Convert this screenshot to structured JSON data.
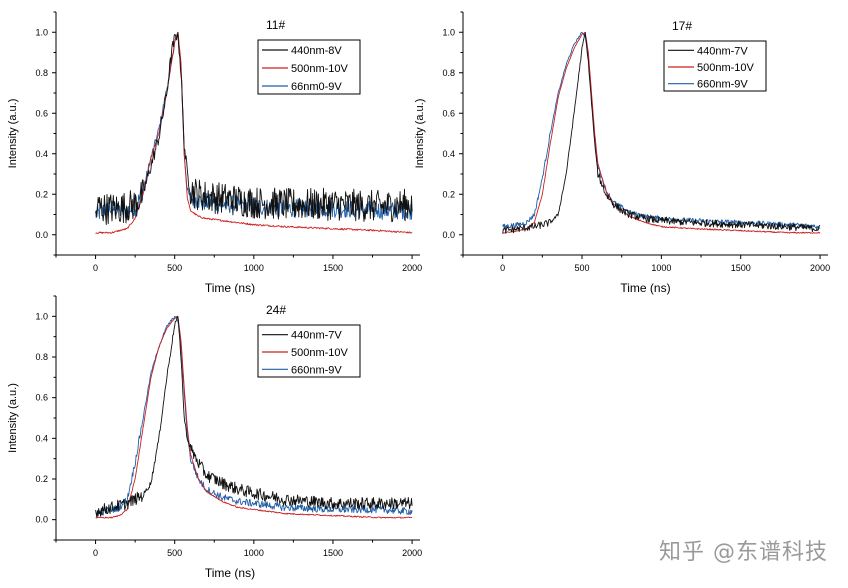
{
  "chart_data": [
    {
      "type": "line",
      "title": "11#",
      "xlabel": "Time (ns)",
      "ylabel": "Intensity (a.u.)",
      "xlim": [
        -250,
        2050
      ],
      "ylim": [
        -0.1,
        1.1
      ],
      "xticks": [
        0,
        500,
        1000,
        1500,
        2000
      ],
      "yticks": [
        0.0,
        0.2,
        0.4,
        0.6,
        0.8,
        1.0
      ],
      "legend_position": "top-right",
      "series": [
        {
          "name": "440nm-8V",
          "color": "#111111",
          "noise": 0.08,
          "x": [
            0,
            20,
            50,
            100,
            150,
            200,
            250,
            300,
            350,
            400,
            450,
            480,
            500,
            520,
            540,
            560,
            580,
            600,
            650,
            700,
            800,
            900,
            1000,
            1200,
            1500,
            1800,
            2000
          ],
          "y": [
            0.1,
            0.14,
            0.13,
            0.13,
            0.13,
            0.14,
            0.15,
            0.2,
            0.34,
            0.48,
            0.7,
            0.9,
            0.97,
            1.0,
            0.8,
            0.45,
            0.3,
            0.22,
            0.2,
            0.19,
            0.18,
            0.17,
            0.16,
            0.15,
            0.15,
            0.14,
            0.15
          ]
        },
        {
          "name": "500nm-10V",
          "color": "#cc2020",
          "noise": 0.004,
          "x": [
            0,
            50,
            100,
            150,
            200,
            250,
            300,
            350,
            400,
            450,
            500,
            520,
            540,
            560,
            580,
            600,
            650,
            700,
            800,
            900,
            1000,
            1200,
            1500,
            1800,
            2000
          ],
          "y": [
            0.01,
            0.01,
            0.01,
            0.02,
            0.03,
            0.08,
            0.2,
            0.38,
            0.5,
            0.7,
            0.95,
            1.0,
            0.85,
            0.4,
            0.18,
            0.12,
            0.09,
            0.08,
            0.07,
            0.06,
            0.05,
            0.04,
            0.03,
            0.02,
            0.01
          ]
        },
        {
          "name": "66nm0-9V",
          "color": "#1f5fa8",
          "noise": 0.045,
          "x": [
            0,
            50,
            100,
            150,
            200,
            250,
            300,
            350,
            400,
            450,
            500,
            520,
            540,
            560,
            580,
            600,
            650,
            700,
            800,
            900,
            1000,
            1200,
            1500,
            1800,
            2000
          ],
          "y": [
            0.1,
            0.12,
            0.13,
            0.12,
            0.12,
            0.13,
            0.22,
            0.38,
            0.52,
            0.72,
            0.95,
            1.0,
            0.82,
            0.4,
            0.22,
            0.18,
            0.17,
            0.16,
            0.15,
            0.15,
            0.14,
            0.13,
            0.13,
            0.12,
            0.12
          ]
        }
      ]
    },
    {
      "type": "line",
      "title": "17#",
      "xlabel": "Time (ns)",
      "ylabel": "Intensity (a.u.)",
      "xlim": [
        -250,
        2050
      ],
      "ylim": [
        -0.1,
        1.1
      ],
      "xticks": [
        0,
        500,
        1000,
        1500,
        2000
      ],
      "yticks": [
        0.0,
        0.2,
        0.4,
        0.6,
        0.8,
        1.0
      ],
      "legend_position": "top-right",
      "series": [
        {
          "name": "440nm-7V",
          "color": "#111111",
          "noise": 0.018,
          "x": [
            0,
            100,
            200,
            250,
            300,
            350,
            400,
            450,
            500,
            520,
            540,
            560,
            580,
            600,
            650,
            700,
            750,
            800,
            900,
            1000,
            1200,
            1500,
            1800,
            2000
          ],
          "y": [
            0.02,
            0.03,
            0.04,
            0.05,
            0.06,
            0.1,
            0.3,
            0.6,
            0.92,
            1.0,
            0.85,
            0.65,
            0.45,
            0.3,
            0.2,
            0.15,
            0.12,
            0.1,
            0.08,
            0.07,
            0.06,
            0.05,
            0.04,
            0.03
          ]
        },
        {
          "name": "500nm-10V",
          "color": "#cc2020",
          "noise": 0.003,
          "x": [
            0,
            100,
            150,
            200,
            250,
            300,
            350,
            400,
            450,
            500,
            520,
            540,
            560,
            580,
            600,
            650,
            700,
            800,
            900,
            1000,
            1200,
            1500,
            1800,
            2000
          ],
          "y": [
            0.01,
            0.02,
            0.03,
            0.06,
            0.2,
            0.45,
            0.68,
            0.82,
            0.92,
            0.99,
            1.0,
            0.9,
            0.7,
            0.5,
            0.35,
            0.22,
            0.15,
            0.09,
            0.06,
            0.04,
            0.03,
            0.02,
            0.01,
            0.01
          ]
        },
        {
          "name": "660nm-9V",
          "color": "#1f5fa8",
          "noise": 0.012,
          "x": [
            0,
            100,
            150,
            200,
            250,
            300,
            350,
            400,
            450,
            500,
            520,
            540,
            560,
            580,
            600,
            650,
            700,
            800,
            900,
            1000,
            1200,
            1500,
            1800,
            2000
          ],
          "y": [
            0.04,
            0.05,
            0.06,
            0.1,
            0.28,
            0.5,
            0.7,
            0.84,
            0.94,
            1.0,
            0.98,
            0.88,
            0.68,
            0.48,
            0.34,
            0.22,
            0.16,
            0.11,
            0.09,
            0.08,
            0.07,
            0.06,
            0.05,
            0.04
          ]
        }
      ]
    },
    {
      "type": "line",
      "title": "24#",
      "xlabel": "Time (ns)",
      "ylabel": "Intensity (a.u.)",
      "xlim": [
        -250,
        2050
      ],
      "ylim": [
        -0.1,
        1.1
      ],
      "xticks": [
        0,
        500,
        1000,
        1500,
        2000
      ],
      "yticks": [
        0.0,
        0.2,
        0.4,
        0.6,
        0.8,
        1.0
      ],
      "legend_position": "top-right",
      "series": [
        {
          "name": "440nm-7V",
          "color": "#111111",
          "noise": 0.03,
          "x": [
            0,
            100,
            200,
            250,
            300,
            350,
            400,
            450,
            500,
            520,
            540,
            560,
            580,
            600,
            650,
            700,
            800,
            900,
            1000,
            1200,
            1500,
            1800,
            2000
          ],
          "y": [
            0.04,
            0.06,
            0.08,
            0.1,
            0.12,
            0.18,
            0.4,
            0.7,
            0.96,
            1.0,
            0.8,
            0.5,
            0.4,
            0.35,
            0.28,
            0.22,
            0.18,
            0.15,
            0.13,
            0.1,
            0.08,
            0.08,
            0.08
          ]
        },
        {
          "name": "500nm-10V",
          "color": "#cc2020",
          "noise": 0.003,
          "x": [
            0,
            100,
            150,
            200,
            250,
            300,
            350,
            400,
            450,
            500,
            520,
            540,
            560,
            580,
            600,
            650,
            700,
            800,
            900,
            1000,
            1200,
            1500,
            1800,
            2000
          ],
          "y": [
            0.01,
            0.01,
            0.02,
            0.05,
            0.2,
            0.45,
            0.7,
            0.85,
            0.94,
            0.99,
            1.0,
            0.88,
            0.65,
            0.45,
            0.32,
            0.2,
            0.14,
            0.09,
            0.06,
            0.05,
            0.03,
            0.02,
            0.01,
            0.01
          ]
        },
        {
          "name": "660nm-9V",
          "color": "#1f5fa8",
          "noise": 0.018,
          "x": [
            0,
            100,
            150,
            200,
            250,
            300,
            350,
            400,
            450,
            500,
            520,
            540,
            560,
            580,
            600,
            650,
            700,
            800,
            900,
            1000,
            1200,
            1500,
            1800,
            2000
          ],
          "y": [
            0.03,
            0.05,
            0.06,
            0.1,
            0.28,
            0.5,
            0.72,
            0.85,
            0.95,
            1.0,
            0.98,
            0.85,
            0.62,
            0.42,
            0.3,
            0.2,
            0.15,
            0.11,
            0.09,
            0.08,
            0.06,
            0.05,
            0.05,
            0.04
          ]
        }
      ]
    }
  ],
  "watermark": "知乎 @东谱科技"
}
